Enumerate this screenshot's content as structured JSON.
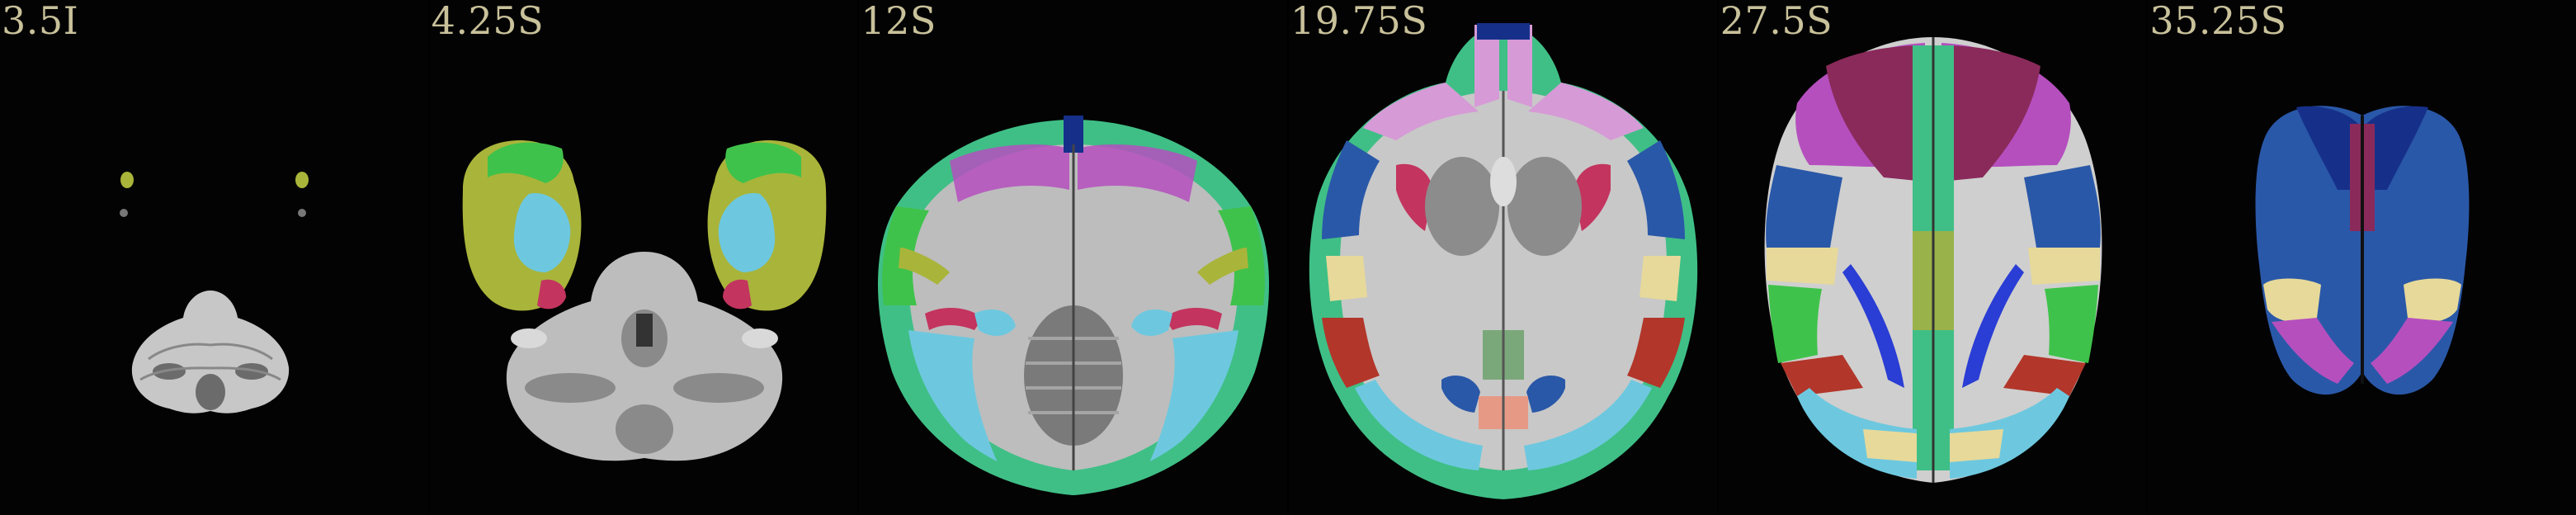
{
  "panels": [
    {
      "label": "3.5I"
    },
    {
      "label": "4.25S"
    },
    {
      "label": "12S"
    },
    {
      "label": "19.75S"
    },
    {
      "label": "27.5S"
    },
    {
      "label": "35.25S"
    }
  ],
  "colors": {
    "background": "#000000",
    "label_text": "#c8c19a",
    "brain_gray": "#bdbdbd",
    "olive": "#a9b43a",
    "green": "#3fc24b",
    "teal_green": "#3fbf86",
    "cyan": "#6dc8df",
    "blue": "#2a58a8",
    "navy": "#16308a",
    "magenta": "#b54fbe",
    "pink": "#d69ad6",
    "crimson": "#c3345f",
    "rust": "#b2362a",
    "yellow": "#e7d99a",
    "salmon": "#e69a86"
  }
}
